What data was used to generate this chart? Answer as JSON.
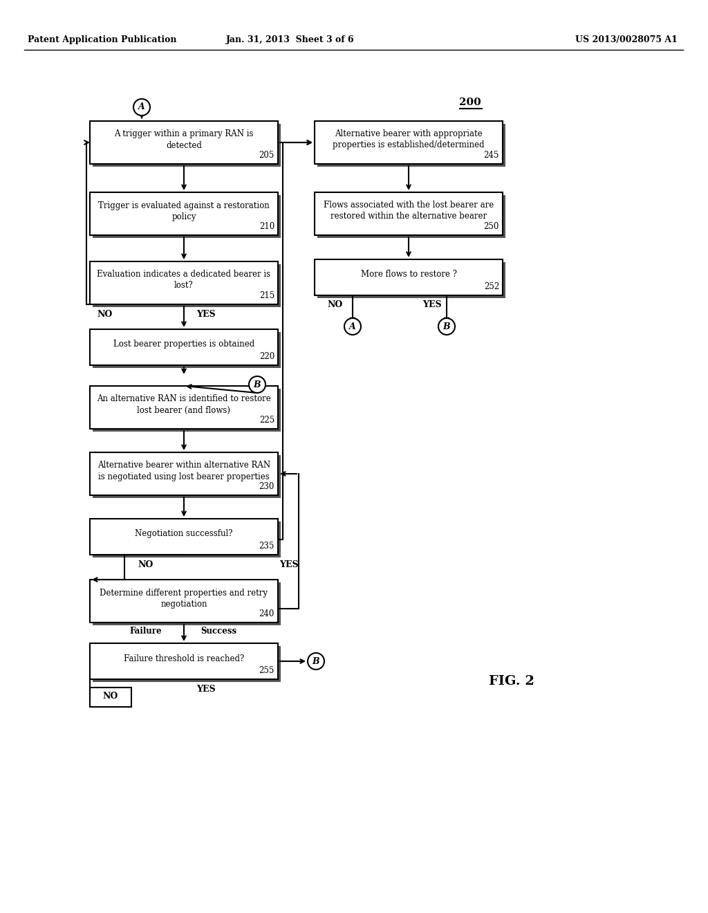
{
  "bg_color": "#ffffff",
  "header_left": "Patent Application Publication",
  "header_mid": "Jan. 31, 2013  Sheet 3 of 6",
  "header_right": "US 2013/0028075 A1",
  "fig_label": "FIG. 2",
  "diagram_label": "200",
  "boxes": {
    "205": {
      "text": "A trigger within a primary RAN is\ndetected",
      "num": "205"
    },
    "210": {
      "text": "Trigger is evaluated against a restoration\npolicy",
      "num": "210"
    },
    "215": {
      "text": "Evaluation indicates a dedicated bearer is\nlost?",
      "num": "215"
    },
    "220": {
      "text": "Lost bearer properties is obtained",
      "num": "220"
    },
    "225": {
      "text": "An alternative RAN is identified to restore\nlost bearer (and flows)",
      "num": "225"
    },
    "230": {
      "text": "Alternative bearer within alternative RAN\nis negotiated using lost bearer properties",
      "num": "230"
    },
    "235": {
      "text": "Negotiation successful?",
      "num": "235"
    },
    "240": {
      "text": "Determine different properties and retry\nnegotiation",
      "num": "240"
    },
    "255": {
      "text": "Failure threshold is reached?",
      "num": "255"
    },
    "245": {
      "text": "Alternative bearer with appropriate\nproperties is established/determined",
      "num": "245"
    },
    "250": {
      "text": "Flows associated with the lost bearer are\nrestored within the alternative bearer",
      "num": "250"
    },
    "252": {
      "text": "More flows to restore ?",
      "num": "252"
    }
  }
}
